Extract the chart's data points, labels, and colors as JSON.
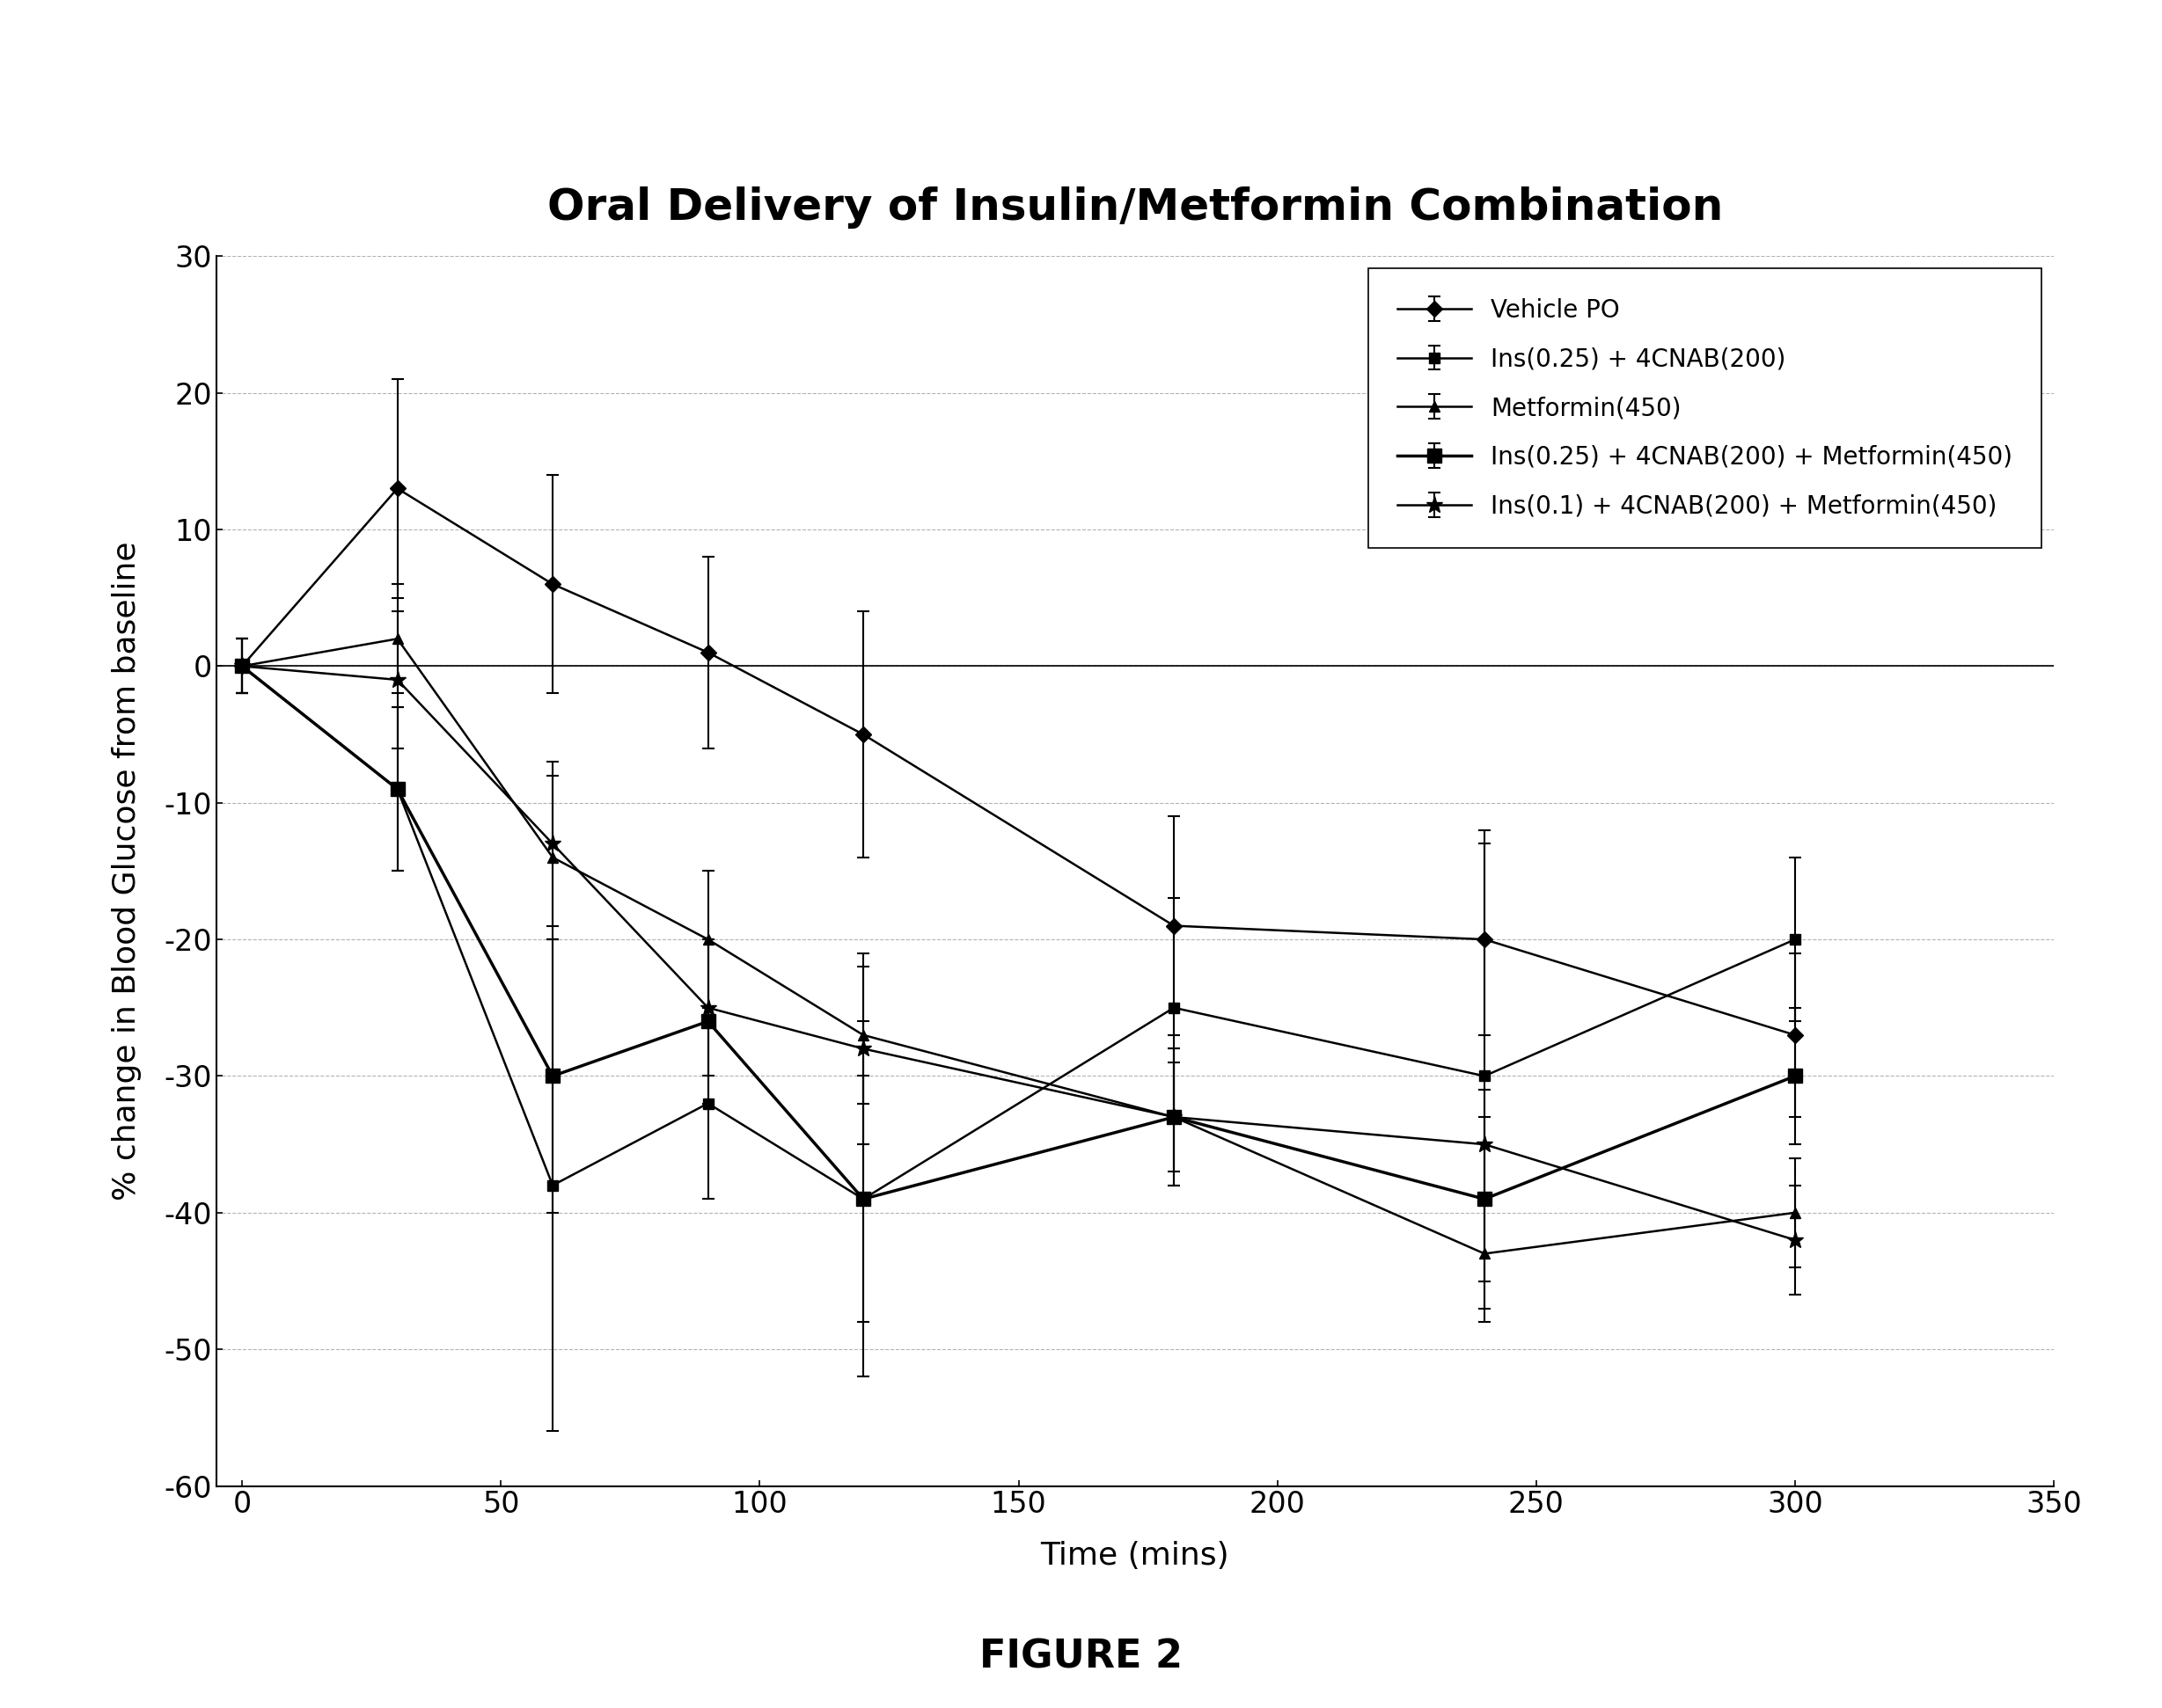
{
  "title": "Oral Delivery of Insulin/Metformin Combination",
  "xlabel": "Time (mins)",
  "ylabel": "% change in Blood Glucose from baseline",
  "figure_label": "FIGURE 2",
  "xlim": [
    -5,
    350
  ],
  "ylim": [
    -60,
    30
  ],
  "yticks": [
    -60,
    -50,
    -40,
    -30,
    -20,
    -10,
    0,
    10,
    20,
    30
  ],
  "xticks": [
    0,
    50,
    100,
    150,
    200,
    250,
    300,
    350
  ],
  "xtick_labels": [
    "0",
    "50",
    "100",
    "150",
    "200",
    "250",
    "300",
    "350"
  ],
  "series": [
    {
      "label": "Vehicle PO",
      "marker": "D",
      "markersize": 9,
      "color": "#000000",
      "linewidth": 1.8,
      "markerfacecolor": "#000000",
      "x": [
        0,
        30,
        60,
        90,
        120,
        180,
        240,
        300
      ],
      "y": [
        0,
        13,
        6,
        1,
        -5,
        -19,
        -20,
        -27
      ],
      "yerr": [
        2,
        8,
        8,
        7,
        9,
        8,
        7,
        6
      ]
    },
    {
      "label": "Ins(0.25) + 4CNAB(200)",
      "marker": "s",
      "markersize": 9,
      "color": "#000000",
      "linewidth": 1.8,
      "markerfacecolor": "#000000",
      "x": [
        0,
        30,
        60,
        90,
        120,
        180,
        240,
        300
      ],
      "y": [
        0,
        -9,
        -38,
        -32,
        -39,
        -25,
        -30,
        -20
      ],
      "yerr": [
        2,
        6,
        18,
        7,
        13,
        8,
        18,
        6
      ]
    },
    {
      "label": "Metformin(450)",
      "marker": "^",
      "markersize": 9,
      "color": "#000000",
      "linewidth": 1.8,
      "markerfacecolor": "#000000",
      "x": [
        0,
        30,
        60,
        90,
        120,
        180,
        240,
        300
      ],
      "y": [
        0,
        2,
        -14,
        -20,
        -27,
        -33,
        -43,
        -40
      ],
      "yerr": [
        2,
        4,
        6,
        5,
        5,
        4,
        4,
        4
      ]
    },
    {
      "label": "Ins(0.25) + 4CNAB(200) + Metformin(450)",
      "marker": "s",
      "markersize": 11,
      "color": "#000000",
      "linewidth": 2.5,
      "markerfacecolor": "#000000",
      "x": [
        0,
        30,
        60,
        90,
        120,
        180,
        240,
        300
      ],
      "y": [
        0,
        -9,
        -30,
        -26,
        -39,
        -33,
        -39,
        -30
      ],
      "yerr": [
        2,
        6,
        10,
        6,
        9,
        5,
        6,
        5
      ]
    },
    {
      "label": "Ins(0.1) + 4CNAB(200) + Metformin(450)",
      "marker": "*",
      "markersize": 14,
      "color": "#000000",
      "linewidth": 1.8,
      "markerfacecolor": "#000000",
      "x": [
        0,
        30,
        60,
        90,
        120,
        180,
        240,
        300
      ],
      "y": [
        0,
        -1,
        -13,
        -25,
        -28,
        -33,
        -35,
        -42
      ],
      "yerr": [
        2,
        5,
        6,
        5,
        7,
        5,
        4,
        4
      ]
    }
  ],
  "title_fontsize": 36,
  "axis_label_fontsize": 26,
  "tick_fontsize": 24,
  "legend_fontsize": 20,
  "figure_label_fontsize": 32
}
